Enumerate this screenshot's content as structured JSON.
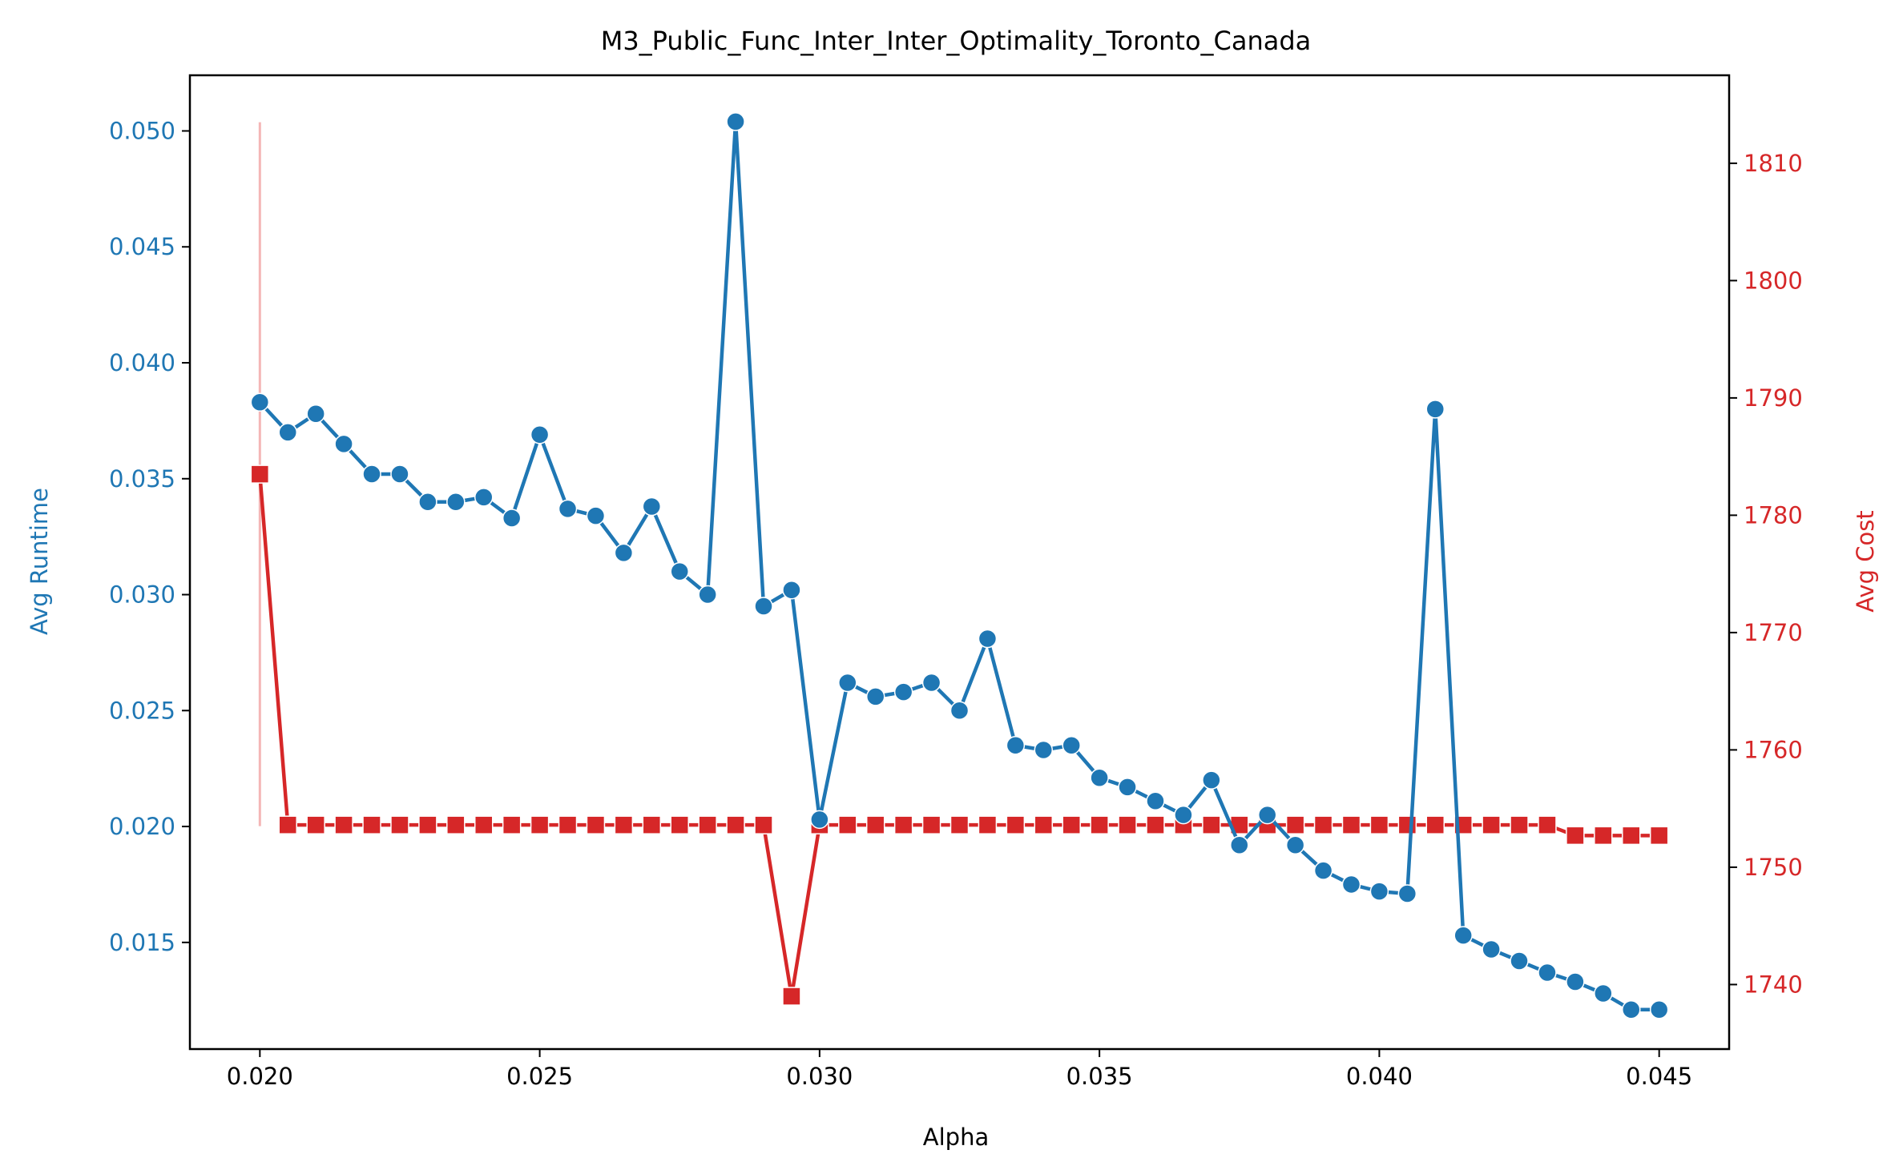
{
  "chart_data": {
    "type": "line",
    "title": "M3_Public_Func_Inter_Inter_Optimality_Toronto_Canada",
    "xlabel": "Alpha",
    "ylabel_left": "Avg Runtime",
    "ylabel_right": "Avg Cost",
    "xlim": [
      0.01875,
      0.04625
    ],
    "ylim_left": [
      0.0104,
      0.0524
    ],
    "ylim_right": [
      1734.5,
      1817.5
    ],
    "x_ticks": [
      "0.020",
      "0.025",
      "0.030",
      "0.035",
      "0.040",
      "0.045"
    ],
    "y_left_ticks": [
      "0.015",
      "0.020",
      "0.025",
      "0.030",
      "0.035",
      "0.040",
      "0.045",
      "0.050"
    ],
    "y_right_ticks": [
      "1740",
      "1750",
      "1760",
      "1770",
      "1780",
      "1790",
      "1800",
      "1810"
    ],
    "grid": false,
    "colors": {
      "runtime": "#1f77b4",
      "cost": "#d62728",
      "error_band": "#f4b6b6"
    },
    "x": [
      0.02,
      0.0205,
      0.021,
      0.0215,
      0.022,
      0.0225,
      0.023,
      0.0235,
      0.024,
      0.0245,
      0.025,
      0.0255,
      0.026,
      0.0265,
      0.027,
      0.0275,
      0.028,
      0.0285,
      0.029,
      0.0295,
      0.03,
      0.0305,
      0.031,
      0.0315,
      0.032,
      0.0325,
      0.033,
      0.0335,
      0.034,
      0.0345,
      0.035,
      0.0355,
      0.036,
      0.0365,
      0.037,
      0.0375,
      0.038,
      0.0385,
      0.039,
      0.0395,
      0.04,
      0.0405,
      0.041,
      0.0415,
      0.042,
      0.0425,
      0.043,
      0.0435,
      0.044,
      0.0445,
      0.045
    ],
    "series": [
      {
        "axis": "left",
        "marker": "circle",
        "values": [
          0.0383,
          0.037,
          0.0378,
          0.0365,
          0.0352,
          0.0352,
          0.034,
          0.034,
          0.0342,
          0.0333,
          0.0369,
          0.0337,
          0.0334,
          0.0318,
          0.0338,
          0.031,
          0.03,
          0.0504,
          0.0295,
          0.0302,
          0.0203,
          0.0262,
          0.0256,
          0.0258,
          0.0262,
          0.025,
          0.0281,
          0.0235,
          0.0233,
          0.0235,
          0.0221,
          0.0217,
          0.0211,
          0.0205,
          0.022,
          0.0192,
          0.0205,
          0.0192,
          0.0181,
          0.0175,
          0.0172,
          0.0171,
          0.038,
          0.0153,
          0.0147,
          0.0142,
          0.0137,
          0.0133,
          0.0128,
          0.0121,
          0.0121
        ]
      },
      {
        "axis": "right",
        "marker": "square",
        "values": [
          1783.5,
          1753.6,
          1753.6,
          1753.6,
          1753.6,
          1753.6,
          1753.6,
          1753.6,
          1753.6,
          1753.6,
          1753.6,
          1753.6,
          1753.6,
          1753.6,
          1753.6,
          1753.6,
          1753.6,
          1753.6,
          1753.6,
          1739.0,
          1753.6,
          1753.6,
          1753.6,
          1753.6,
          1753.6,
          1753.6,
          1753.6,
          1753.6,
          1753.6,
          1753.6,
          1753.6,
          1753.6,
          1753.6,
          1753.6,
          1753.6,
          1753.6,
          1753.6,
          1753.6,
          1753.6,
          1753.6,
          1753.6,
          1753.6,
          1753.6,
          1753.6,
          1753.6,
          1753.6,
          1753.6,
          1752.7,
          1752.7,
          1752.7,
          1752.7
        ],
        "error_band": {
          "x": 0.02,
          "range": [
            1753.5,
            1813.5
          ]
        }
      }
    ]
  }
}
